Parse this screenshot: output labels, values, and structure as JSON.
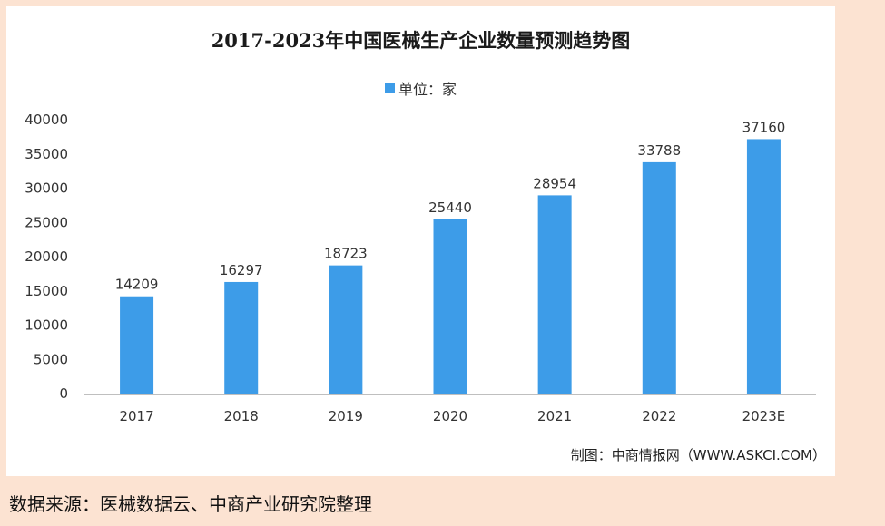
{
  "chart_data": {
    "type": "bar",
    "title": "2017-2023年中国医械生产企业数量预测趋势图",
    "legend": "单位：家",
    "legend_position": "top-center",
    "categories": [
      "2017",
      "2018",
      "2019",
      "2020",
      "2021",
      "2022",
      "2023E"
    ],
    "values": [
      14209,
      16297,
      18723,
      25440,
      28954,
      33788,
      37160
    ],
    "ylim": [
      0,
      40000
    ],
    "yticks": [
      0,
      5000,
      10000,
      15000,
      20000,
      25000,
      30000,
      35000,
      40000
    ],
    "grid": false,
    "bar_color": "#3D9CE8"
  },
  "credit": "制图：中商情报网（WWW.ASKCI.COM）",
  "source": "数据来源：医械数据云、中商产业研究院整理"
}
